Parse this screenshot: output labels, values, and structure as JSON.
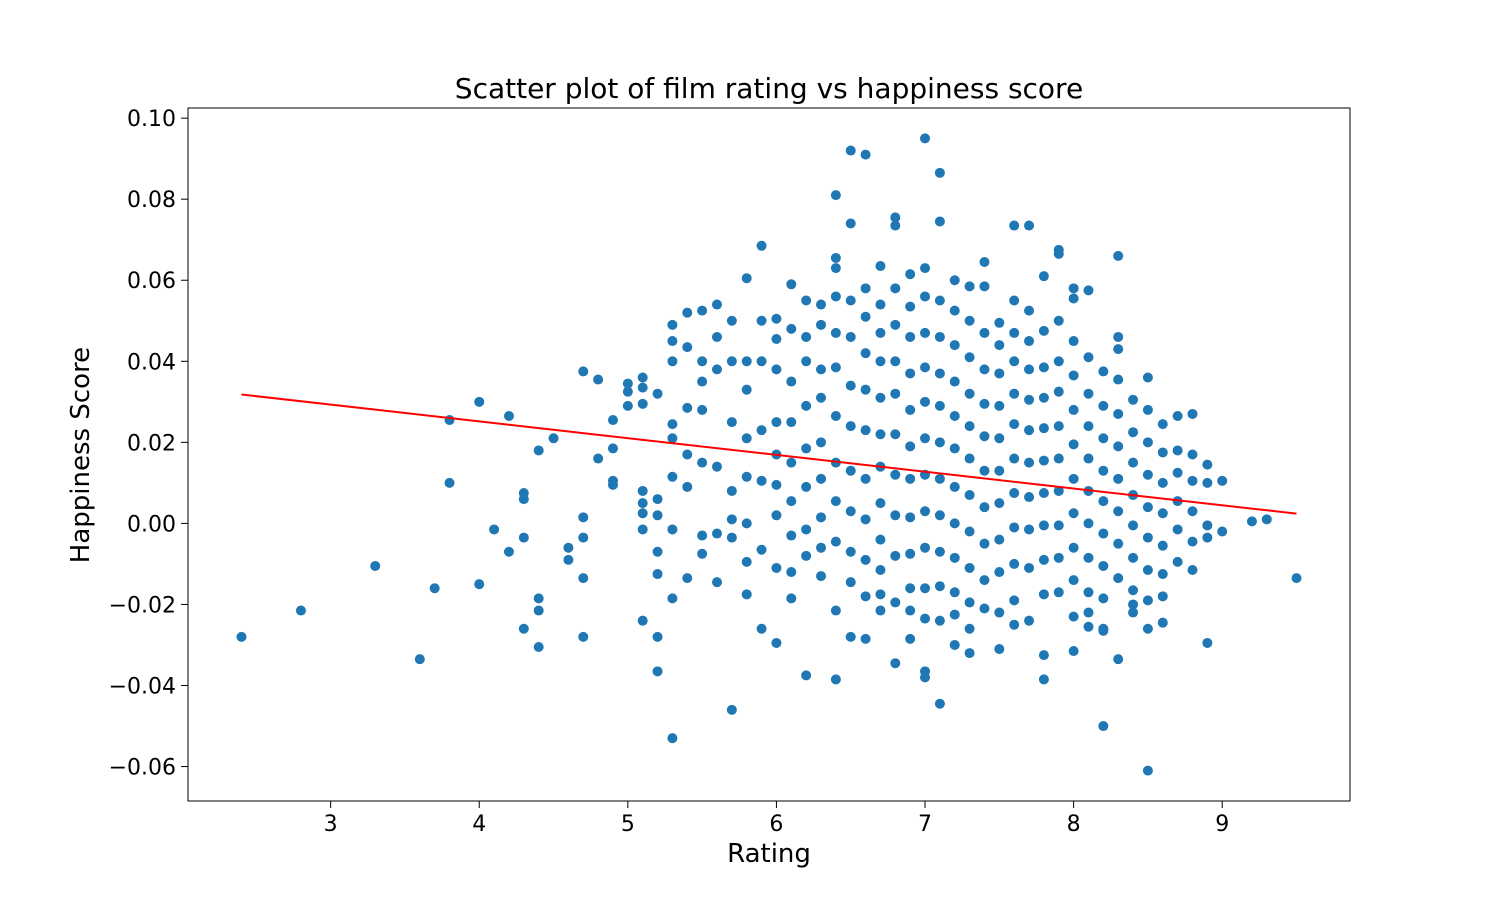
{
  "chart_data": {
    "type": "scatter",
    "title": "Scatter plot of film rating vs happiness score",
    "xlabel": "Rating",
    "ylabel": "Happiness Score",
    "xlim": [
      2.04,
      9.86
    ],
    "ylim": [
      -0.0685,
      0.1025
    ],
    "xticks": [
      3,
      4,
      5,
      6,
      7,
      8,
      9
    ],
    "xtick_labels": [
      "3",
      "4",
      "5",
      "6",
      "7",
      "8",
      "9"
    ],
    "yticks": [
      -0.06,
      -0.04,
      -0.02,
      0.0,
      0.02,
      0.04,
      0.06,
      0.08,
      0.1
    ],
    "ytick_labels": [
      "−0.06",
      "−0.04",
      "−0.02",
      "0.00",
      "0.02",
      "0.04",
      "0.06",
      "0.08",
      "0.10"
    ],
    "grid": false,
    "colors": {
      "points": "#1f77b4",
      "trend": "#ff0000"
    },
    "trend_line": {
      "x": [
        2.4,
        9.5
      ],
      "y": [
        0.0318,
        0.0024
      ]
    },
    "points_x": [
      2.4,
      2.8,
      3.3,
      3.6,
      3.7,
      3.8,
      3.8,
      4.0,
      4.0,
      4.1,
      4.2,
      4.2,
      4.3,
      4.3,
      4.3,
      4.3,
      4.4,
      4.4,
      4.4,
      4.4,
      4.5,
      4.6,
      4.6,
      4.7,
      4.7,
      4.7,
      4.7,
      4.7,
      4.8,
      4.8,
      4.9,
      4.9,
      4.9,
      4.9,
      5.0,
      5.0,
      5.0,
      5.1,
      5.1,
      5.1,
      5.1,
      5.1,
      5.1,
      5.1,
      5.1,
      5.2,
      5.2,
      5.2,
      5.2,
      5.2,
      5.2,
      5.2,
      5.3,
      5.3,
      5.3,
      5.3,
      5.3,
      5.3,
      5.3,
      5.3,
      5.3,
      5.4,
      5.4,
      5.4,
      5.4,
      5.4,
      5.4,
      5.5,
      5.5,
      5.5,
      5.5,
      5.5,
      5.5,
      5.5,
      5.6,
      5.6,
      5.6,
      5.6,
      5.6,
      5.6,
      5.7,
      5.7,
      5.7,
      5.7,
      5.7,
      5.7,
      5.7,
      5.8,
      5.8,
      5.8,
      5.8,
      5.8,
      5.8,
      5.8,
      5.8,
      5.9,
      5.9,
      5.9,
      5.9,
      5.9,
      5.9,
      5.9,
      6.0,
      6.0,
      6.0,
      6.0,
      6.0,
      6.0,
      6.0,
      6.0,
      6.0,
      6.1,
      6.1,
      6.1,
      6.1,
      6.1,
      6.1,
      6.1,
      6.1,
      6.1,
      6.2,
      6.2,
      6.2,
      6.2,
      6.2,
      6.2,
      6.2,
      6.2,
      6.2,
      6.3,
      6.3,
      6.3,
      6.3,
      6.3,
      6.3,
      6.3,
      6.3,
      6.3,
      6.4,
      6.4,
      6.4,
      6.4,
      6.4,
      6.4,
      6.4,
      6.4,
      6.4,
      6.4,
      6.4,
      6.4,
      6.5,
      6.5,
      6.5,
      6.5,
      6.5,
      6.5,
      6.5,
      6.5,
      6.5,
      6.5,
      6.5,
      6.6,
      6.6,
      6.6,
      6.6,
      6.6,
      6.6,
      6.6,
      6.6,
      6.6,
      6.6,
      6.6,
      6.7,
      6.7,
      6.7,
      6.7,
      6.7,
      6.7,
      6.7,
      6.7,
      6.7,
      6.7,
      6.7,
      6.7,
      6.8,
      6.8,
      6.8,
      6.8,
      6.8,
      6.8,
      6.8,
      6.8,
      6.8,
      6.8,
      6.8,
      6.8,
      6.9,
      6.9,
      6.9,
      6.9,
      6.9,
      6.9,
      6.9,
      6.9,
      6.9,
      6.9,
      6.9,
      6.9,
      7.0,
      7.0,
      7.0,
      7.0,
      7.0,
      7.0,
      7.0,
      7.0,
      7.0,
      7.0,
      7.0,
      7.0,
      7.0,
      7.0,
      7.1,
      7.1,
      7.1,
      7.1,
      7.1,
      7.1,
      7.1,
      7.1,
      7.1,
      7.1,
      7.1,
      7.1,
      7.1,
      7.2,
      7.2,
      7.2,
      7.2,
      7.2,
      7.2,
      7.2,
      7.2,
      7.2,
      7.2,
      7.2,
      7.2,
      7.3,
      7.3,
      7.3,
      7.3,
      7.3,
      7.3,
      7.3,
      7.3,
      7.3,
      7.3,
      7.3,
      7.3,
      7.4,
      7.4,
      7.4,
      7.4,
      7.4,
      7.4,
      7.4,
      7.4,
      7.4,
      7.4,
      7.4,
      7.5,
      7.5,
      7.5,
      7.5,
      7.5,
      7.5,
      7.5,
      7.5,
      7.5,
      7.5,
      7.5,
      7.6,
      7.6,
      7.6,
      7.6,
      7.6,
      7.6,
      7.6,
      7.6,
      7.6,
      7.6,
      7.6,
      7.6,
      7.7,
      7.7,
      7.7,
      7.7,
      7.7,
      7.7,
      7.7,
      7.7,
      7.7,
      7.7,
      7.7,
      7.8,
      7.8,
      7.8,
      7.8,
      7.8,
      7.8,
      7.8,
      7.8,
      7.8,
      7.8,
      7.8,
      7.8,
      7.9,
      7.9,
      7.9,
      7.9,
      7.9,
      7.9,
      7.9,
      7.9,
      7.9,
      7.9,
      7.9,
      8.0,
      8.0,
      8.0,
      8.0,
      8.0,
      8.0,
      8.0,
      8.0,
      8.0,
      8.0,
      8.0,
      8.0,
      8.1,
      8.1,
      8.1,
      8.1,
      8.1,
      8.1,
      8.1,
      8.1,
      8.1,
      8.1,
      8.1,
      8.2,
      8.2,
      8.2,
      8.2,
      8.2,
      8.2,
      8.2,
      8.2,
      8.2,
      8.2,
      8.2,
      8.3,
      8.3,
      8.3,
      8.3,
      8.3,
      8.3,
      8.3,
      8.3,
      8.3,
      8.3,
      8.3,
      8.4,
      8.4,
      8.4,
      8.4,
      8.4,
      8.4,
      8.4,
      8.4,
      8.4,
      8.5,
      8.5,
      8.5,
      8.5,
      8.5,
      8.5,
      8.5,
      8.5,
      8.5,
      8.5,
      8.6,
      8.6,
      8.6,
      8.6,
      8.6,
      8.6,
      8.6,
      8.6,
      8.7,
      8.7,
      8.7,
      8.7,
      8.7,
      8.7,
      8.8,
      8.8,
      8.8,
      8.8,
      8.8,
      8.8,
      8.9,
      8.9,
      8.9,
      8.9,
      8.9,
      9.0,
      9.0,
      9.2,
      9.3,
      9.5
    ],
    "points_y": [
      -0.028,
      -0.0215,
      -0.0105,
      -0.0335,
      -0.016,
      0.0255,
      0.01,
      0.03,
      -0.015,
      -0.0015,
      0.0265,
      -0.007,
      0.0075,
      -0.0035,
      -0.026,
      0.006,
      0.018,
      -0.0185,
      -0.0215,
      -0.0305,
      0.021,
      -0.006,
      -0.009,
      0.0375,
      0.0015,
      -0.0035,
      -0.0135,
      -0.028,
      0.0355,
      0.016,
      0.0255,
      0.0185,
      0.0105,
      0.0095,
      0.0345,
      0.0325,
      0.029,
      0.036,
      0.0335,
      0.0295,
      0.008,
      0.005,
      0.0025,
      -0.0015,
      -0.024,
      0.032,
      0.006,
      0.002,
      -0.007,
      -0.0125,
      -0.028,
      -0.0365,
      0.049,
      0.045,
      0.04,
      0.0245,
      0.021,
      0.0115,
      -0.0015,
      -0.0185,
      -0.053,
      0.052,
      0.0435,
      0.0285,
      0.017,
      0.009,
      -0.0135,
      0.0525,
      0.04,
      0.035,
      0.028,
      0.015,
      -0.003,
      -0.0075,
      0.054,
      0.046,
      0.038,
      0.014,
      -0.0025,
      -0.0145,
      0.05,
      0.04,
      0.025,
      0.008,
      0.001,
      -0.0035,
      -0.046,
      0.0605,
      0.04,
      0.033,
      0.021,
      0.0115,
      0.0,
      -0.0095,
      -0.0175,
      0.0685,
      0.05,
      0.04,
      0.023,
      0.0105,
      -0.0065,
      -0.026,
      0.0505,
      0.0455,
      0.038,
      0.025,
      0.017,
      0.0095,
      0.002,
      -0.011,
      -0.0295,
      0.059,
      0.048,
      0.035,
      0.025,
      0.015,
      0.0055,
      -0.003,
      -0.012,
      -0.0185,
      0.055,
      0.046,
      0.04,
      0.029,
      0.0185,
      0.009,
      -0.0015,
      -0.008,
      -0.0375,
      0.054,
      0.049,
      0.038,
      0.031,
      0.02,
      0.011,
      0.0015,
      -0.006,
      -0.013,
      0.081,
      0.0655,
      0.063,
      0.056,
      0.047,
      0.0385,
      0.0265,
      0.015,
      0.0055,
      -0.0045,
      -0.0215,
      -0.0385,
      0.092,
      0.074,
      0.055,
      0.046,
      0.034,
      0.024,
      0.013,
      0.003,
      -0.007,
      -0.0145,
      -0.028,
      0.091,
      0.058,
      0.051,
      0.042,
      0.033,
      0.023,
      0.011,
      0.001,
      -0.009,
      -0.018,
      -0.0285,
      0.0635,
      0.054,
      0.047,
      0.04,
      0.031,
      0.022,
      0.014,
      0.005,
      -0.004,
      -0.0115,
      -0.0175,
      -0.0215,
      0.0755,
      0.0735,
      0.058,
      0.049,
      0.04,
      0.032,
      0.022,
      0.012,
      0.002,
      -0.008,
      -0.0195,
      -0.0345,
      0.0615,
      0.0535,
      0.046,
      0.037,
      0.028,
      0.019,
      0.011,
      0.0015,
      -0.0075,
      -0.016,
      -0.0215,
      -0.0285,
      0.095,
      0.063,
      0.056,
      0.047,
      0.0385,
      0.03,
      0.021,
      0.012,
      0.003,
      -0.006,
      -0.016,
      -0.0235,
      -0.0365,
      -0.038,
      0.0865,
      0.0745,
      0.055,
      0.046,
      0.037,
      0.029,
      0.02,
      0.011,
      0.002,
      -0.007,
      -0.0155,
      -0.024,
      -0.0445,
      0.06,
      0.0525,
      0.044,
      0.035,
      0.0265,
      0.0185,
      0.009,
      0.0,
      -0.0085,
      -0.017,
      -0.0225,
      -0.03,
      0.0585,
      0.05,
      0.041,
      0.032,
      0.024,
      0.016,
      0.007,
      -0.002,
      -0.011,
      -0.0195,
      -0.026,
      -0.032,
      0.0645,
      0.0585,
      0.047,
      0.038,
      0.0295,
      0.0215,
      0.013,
      0.004,
      -0.005,
      -0.014,
      -0.021,
      0.0495,
      0.044,
      0.037,
      0.029,
      0.021,
      0.013,
      0.005,
      -0.004,
      -0.012,
      -0.022,
      -0.031,
      0.0735,
      0.055,
      0.047,
      0.04,
      0.032,
      0.0245,
      0.016,
      0.0075,
      -0.001,
      -0.01,
      -0.019,
      -0.025,
      0.0735,
      0.0525,
      0.045,
      0.038,
      0.0305,
      0.023,
      0.015,
      0.0065,
      -0.0015,
      -0.011,
      -0.024,
      0.061,
      0.0475,
      0.0385,
      0.031,
      0.0235,
      0.0155,
      0.0075,
      -0.0005,
      -0.009,
      -0.0175,
      -0.0325,
      -0.0385,
      0.0675,
      0.0665,
      0.05,
      0.04,
      0.0325,
      0.024,
      0.016,
      0.008,
      -0.0005,
      -0.0085,
      -0.017,
      0.058,
      0.0555,
      0.045,
      0.0365,
      0.028,
      0.0195,
      0.011,
      0.0025,
      -0.006,
      -0.014,
      -0.023,
      -0.0315,
      0.0575,
      0.041,
      0.032,
      0.024,
      0.016,
      0.008,
      0.0,
      -0.0085,
      -0.017,
      -0.022,
      -0.0255,
      0.0375,
      0.029,
      0.021,
      0.013,
      0.0055,
      -0.0025,
      -0.0105,
      -0.0185,
      -0.026,
      -0.05,
      -0.0265,
      0.066,
      0.046,
      0.043,
      0.0355,
      0.027,
      0.019,
      0.011,
      0.003,
      -0.005,
      -0.0135,
      -0.0335,
      0.0305,
      0.0225,
      0.015,
      0.007,
      -0.0005,
      -0.0085,
      -0.0165,
      -0.02,
      -0.022,
      0.036,
      0.028,
      0.02,
      0.012,
      0.004,
      -0.0035,
      -0.0115,
      -0.019,
      -0.026,
      -0.061,
      0.0245,
      0.0175,
      0.01,
      0.0025,
      -0.0055,
      -0.0125,
      -0.018,
      -0.0245,
      0.0265,
      0.018,
      0.0125,
      0.0055,
      -0.0015,
      -0.0095,
      0.027,
      0.017,
      0.0105,
      0.003,
      -0.0045,
      -0.0115,
      0.0145,
      0.01,
      -0.0005,
      -0.0035,
      -0.0295,
      0.0105,
      -0.002,
      0.0005,
      0.001,
      -0.0135
    ]
  }
}
